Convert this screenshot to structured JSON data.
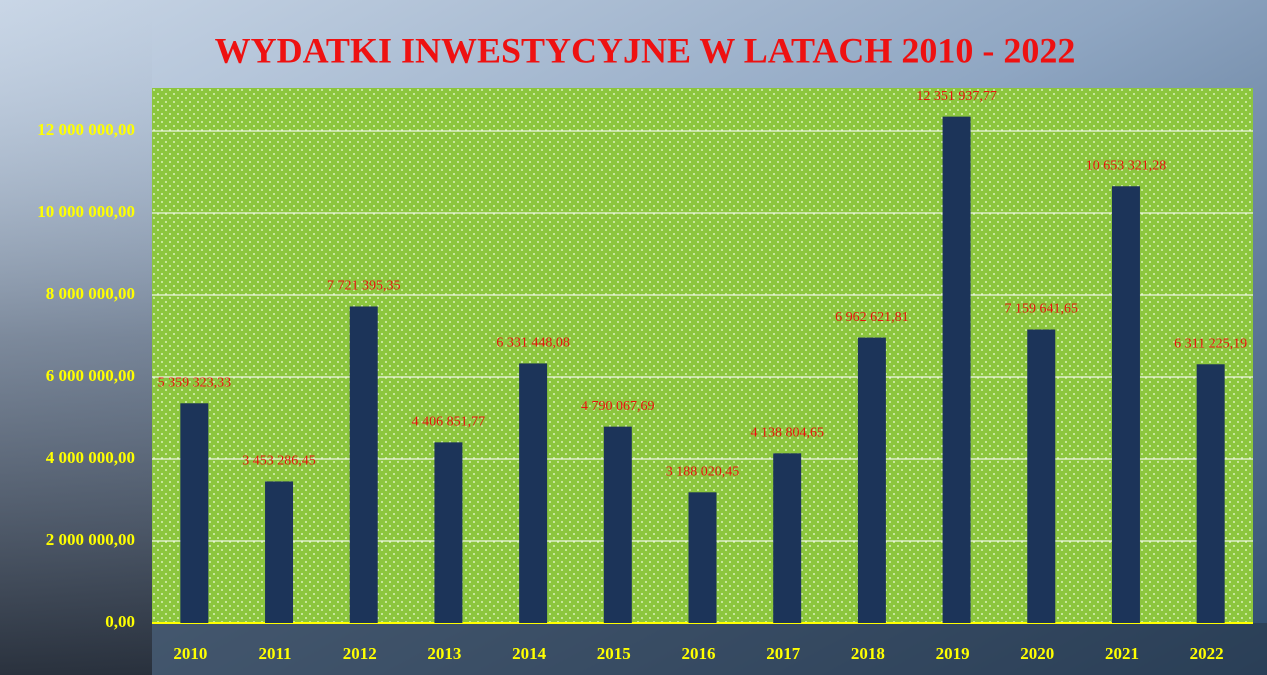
{
  "chart_data": {
    "type": "bar",
    "title": "WYDATKI INWESTYCYJNE W LATACH 2010 - 2022",
    "categories": [
      "2010",
      "2011",
      "2012",
      "2013",
      "2014",
      "2015",
      "2016",
      "2017",
      "2018",
      "2019",
      "2020",
      "2021",
      "2022"
    ],
    "values": [
      5359323.33,
      3453286.45,
      7721395.35,
      4406851.77,
      6331448.08,
      4790067.69,
      3188020.45,
      4138804.65,
      6962621.81,
      12351937.77,
      7159641.65,
      10653321.28,
      6311225.19
    ],
    "value_labels": [
      "5 359 323,33",
      "3 453 286,45",
      "7 721 395,35",
      "4 406 851,77",
      "6 331 448,08",
      "4 790 067,69",
      "3 188 020,45",
      "4 138 804,65",
      "6 962 621,81",
      "12 351 937,77",
      "7 159 641,65",
      "10 653 321,28",
      "6 311 225,19"
    ],
    "color": "#1c3459",
    "ylim": [
      0,
      13050000
    ],
    "yticks": [
      {
        "value": 0,
        "label": "0,00"
      },
      {
        "value": 2000000,
        "label": "2 000 000,00"
      },
      {
        "value": 4000000,
        "label": "4 000 000,00"
      },
      {
        "value": 6000000,
        "label": "6 000 000,00"
      },
      {
        "value": 8000000,
        "label": "8 000 000,00"
      },
      {
        "value": 10000000,
        "label": "10 000 000,00"
      },
      {
        "value": 12000000,
        "label": "12 000 000,00"
      }
    ],
    "grid": true
  }
}
